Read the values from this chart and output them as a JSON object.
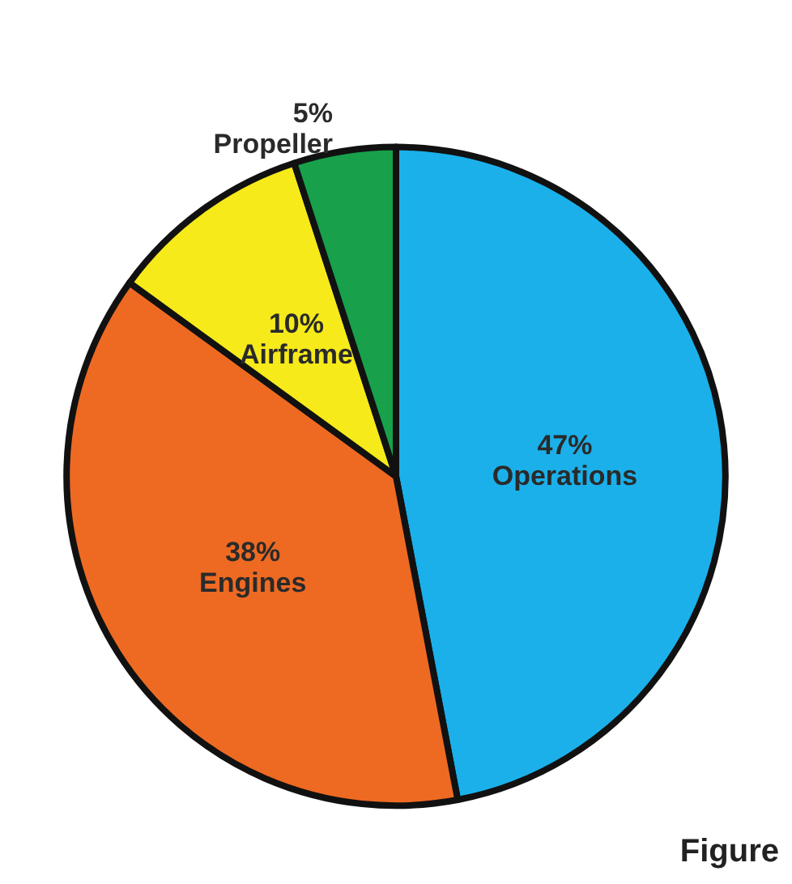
{
  "chart_data": {
    "type": "pie",
    "categories": [
      "Operations",
      "Engines",
      "Airframe",
      "Propeller"
    ],
    "values": [
      47,
      38,
      10,
      5
    ],
    "colors": [
      "#1bb0ea",
      "#ee6a22",
      "#f6ea1a",
      "#18a04a"
    ],
    "value_labels": [
      "47%",
      "38%",
      "10%",
      "5%"
    ],
    "annotations": [
      "Figure"
    ]
  }
}
